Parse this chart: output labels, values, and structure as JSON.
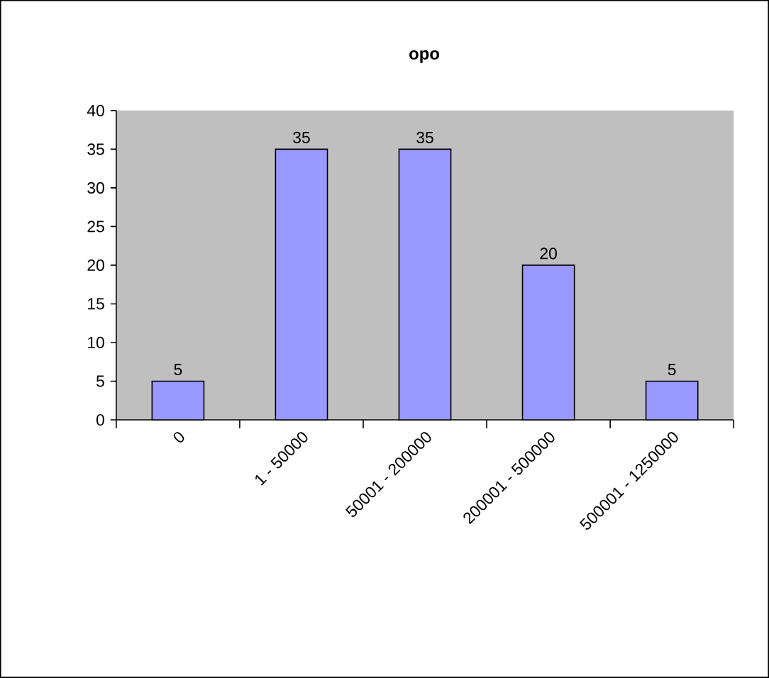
{
  "chart_data": {
    "type": "bar",
    "title": "opo",
    "categories": [
      "0",
      "1 - 50000",
      "50001 - 200000",
      "200001 - 500000",
      "500001 - 1250000"
    ],
    "values": [
      5,
      35,
      35,
      20,
      5
    ],
    "color": "#9999ff",
    "ylim": [
      0,
      40
    ],
    "yticks": [
      0,
      5,
      10,
      15,
      20,
      25,
      30,
      35,
      40
    ],
    "data_labels": true
  }
}
